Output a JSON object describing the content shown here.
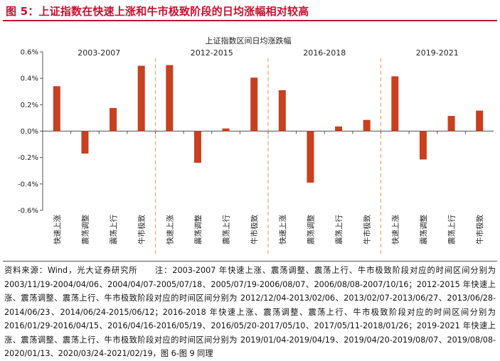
{
  "header": {
    "title": "图 5：上证指数在快速上涨和牛市极致阶段的日均涨幅相对较高"
  },
  "chart_data": {
    "type": "bar",
    "title": "上证指数区间日均涨跌幅",
    "ylim": [
      -0.6,
      0.6
    ],
    "ytick_values": [
      -0.6,
      -0.4,
      -0.2,
      0.0,
      0.2,
      0.4,
      0.6
    ],
    "ytick_labels": [
      "-0.6%",
      "-0.4%",
      "-0.2%",
      "0.0%",
      "0.2%",
      "0.4%",
      "0.6%"
    ],
    "bar_color": "#c8401f",
    "divider_color": "#f0a060",
    "grid": false,
    "groups": [
      {
        "name": "2003-2007",
        "categories": [
          "快速上涨",
          "震荡调整",
          "震荡上行",
          "牛市极致"
        ],
        "values": [
          0.34,
          -0.17,
          0.175,
          0.495
        ]
      },
      {
        "name": "2012-2015",
        "categories": [
          "快速上涨",
          "震荡调整",
          "震荡上行",
          "牛市极致"
        ],
        "values": [
          0.5,
          -0.24,
          0.02,
          0.405
        ]
      },
      {
        "name": "2016-2018",
        "categories": [
          "快速上涨",
          "震荡调整",
          "震荡上行",
          "牛市极致"
        ],
        "values": [
          0.31,
          -0.39,
          0.035,
          0.085
        ]
      },
      {
        "name": "2019-2021",
        "categories": [
          "快速上涨",
          "震荡调整",
          "震荡上行",
          "牛市极致"
        ],
        "values": [
          0.415,
          -0.215,
          0.115,
          0.155
        ]
      }
    ]
  },
  "source_note": "资料来源：Wind，光大证券研究所　　注：2003-2007 年快速上涨、震荡调整、震荡上行、牛市极致阶段对应的时间区间分别为 2003/11/19-2004/04/06、2004/04/07-2005/07/18、2005/07/19-2006/08/07、2006/08/08-2007/10/16；2012-2015 年快速上涨、震荡调整、震荡上行、牛市极致阶段对应的时间区间分别为 2012/12/04-2013/02/06、2013/02/07-2013/06/27、2013/06/28-2014/06/23、2014/06/24-2015/06/12；2016-2018 年快速上涨、震荡调整、震荡上行、牛市极致阶段对应的时间区间分别为 2016/01/29-2016/04/15、2016/04/16-2016/05/19、2016/05/20-2017/05/10、2017/05/11-2018/01/26；2019-2021 年快速上涨、震荡调整、震荡上行、牛市极致阶段对应的时间区间分别为 2019/01/04-2019/04/19、2019/04/20-2019/08/07、2019/08/08-2020/01/13、2020/03/24-2021/02/19，图 6-图 9 同理"
}
